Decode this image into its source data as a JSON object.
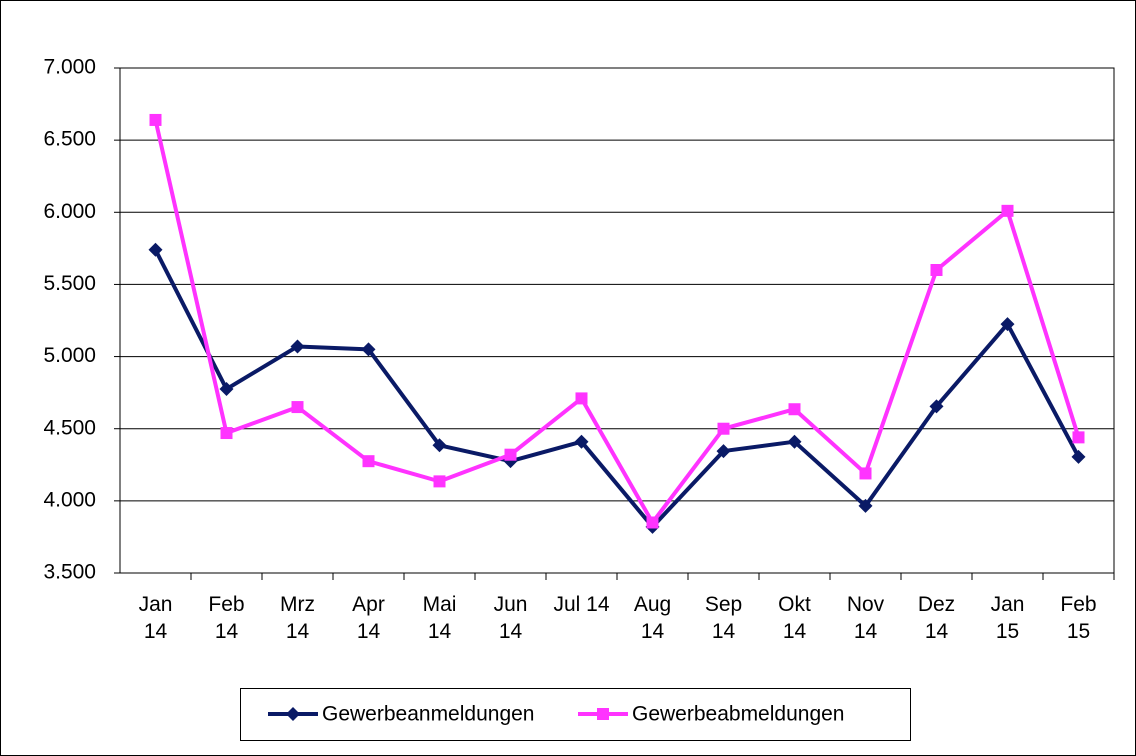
{
  "chart_data": {
    "type": "line",
    "categories": [
      "Jan 14",
      "Feb 14",
      "Mrz 14",
      "Apr 14",
      "Mai 14",
      "Jun 14",
      "Jul 14",
      "Aug 14",
      "Sep 14",
      "Okt 14",
      "Nov 14",
      "Dez 14",
      "Jan 15",
      "Feb 15"
    ],
    "series": [
      {
        "name": "Gewerbeanmeldungen",
        "color": "#0a1a66",
        "marker": "diamond",
        "values": [
          5740,
          4775,
          5070,
          5050,
          4385,
          4275,
          4410,
          3820,
          4345,
          4410,
          3965,
          4655,
          5225,
          4305
        ]
      },
      {
        "name": "Gewerbeabmeldungen",
        "color": "#ff33ff",
        "marker": "square",
        "values": [
          6640,
          4470,
          4650,
          4275,
          4135,
          4320,
          4710,
          3850,
          4500,
          4635,
          4190,
          5600,
          6010,
          4440
        ]
      }
    ],
    "ylim": [
      3500,
      7000
    ],
    "yticks": [
      {
        "value": 3500,
        "label": "3.500"
      },
      {
        "value": 4000,
        "label": "4.000"
      },
      {
        "value": 4500,
        "label": "4.500"
      },
      {
        "value": 5000,
        "label": "5.000"
      },
      {
        "value": 5500,
        "label": "5.500"
      },
      {
        "value": 6000,
        "label": "6.000"
      },
      {
        "value": 6500,
        "label": "6.500"
      },
      {
        "value": 7000,
        "label": "7.000"
      }
    ],
    "grid": true,
    "legend": "bottom"
  }
}
